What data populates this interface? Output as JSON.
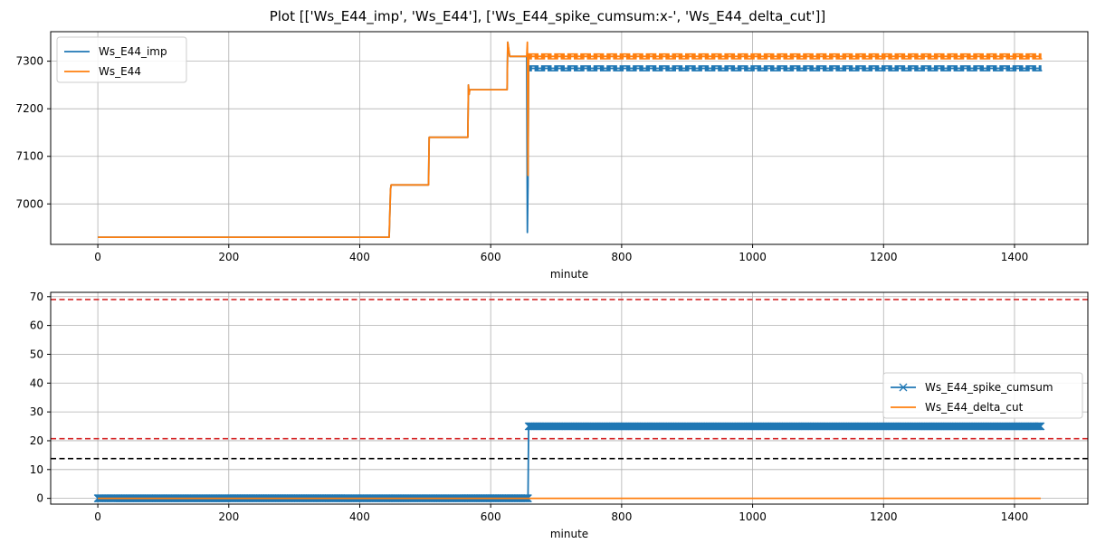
{
  "figure": {
    "suptitle": "Plot [['Ws_E44_imp', 'Ws_E44'], ['Ws_E44_spike_cumsum:x-', 'Ws_E44_delta_cut']]"
  },
  "chart_data": [
    {
      "type": "line",
      "title": "",
      "xlabel": "minute",
      "ylabel": "",
      "xlim": [
        -72,
        1512
      ],
      "ylim": [
        6915,
        7362
      ],
      "xticks": [
        0,
        200,
        400,
        600,
        800,
        1000,
        1200,
        1400
      ],
      "yticks": [
        7000,
        7100,
        7200,
        7300
      ],
      "grid": true,
      "legend_position": "upper left",
      "series": [
        {
          "name": "Ws_E44_imp",
          "color": "#1f77b4",
          "x": [
            0,
            445,
            447,
            448,
            505,
            506,
            565,
            566,
            567,
            568,
            625,
            626,
            628,
            629,
            655,
            656,
            657,
            658,
            660,
            1440
          ],
          "y": [
            6930,
            6930,
            7030,
            7040,
            7040,
            7140,
            7140,
            7250,
            7230,
            7240,
            7240,
            7340,
            7320,
            7310,
            7310,
            6940,
            7040,
            7290,
            7285,
            7285
          ],
          "oscillation": {
            "x_range": [
              658,
              1440
            ],
            "low": 7280,
            "high": 7290
          }
        },
        {
          "name": "Ws_E44",
          "color": "#ff7f0e",
          "x": [
            0,
            445,
            447,
            448,
            505,
            506,
            565,
            566,
            567,
            568,
            625,
            626,
            628,
            629,
            655,
            656,
            657,
            658,
            660,
            1440
          ],
          "y": [
            6930,
            6930,
            7030,
            7040,
            7040,
            7140,
            7140,
            7250,
            7230,
            7240,
            7240,
            7340,
            7320,
            7310,
            7310,
            7340,
            7060,
            7315,
            7310,
            7310
          ],
          "oscillation": {
            "x_range": [
              658,
              1440
            ],
            "low": 7305,
            "high": 7315
          }
        }
      ]
    },
    {
      "type": "line",
      "title": "",
      "xlabel": "minute",
      "ylabel": "",
      "xlim": [
        -72,
        1512
      ],
      "ylim": [
        -2,
        71.5
      ],
      "xticks": [
        0,
        200,
        400,
        600,
        800,
        1000,
        1200,
        1400
      ],
      "yticks": [
        0,
        10,
        20,
        30,
        40,
        50,
        60,
        70
      ],
      "grid": true,
      "legend_position": "center right",
      "series": [
        {
          "name": "Ws_E44_spike_cumsum",
          "color": "#1f77b4",
          "marker": "x",
          "x": [
            0,
            657,
            658,
            1440
          ],
          "y": [
            0,
            0,
            25,
            25
          ],
          "marker_band": {
            "x_range": [
              0,
              657
            ],
            "value": 0
          },
          "marker_band_2": {
            "x_range": [
              658,
              1440
            ],
            "value": 25
          }
        },
        {
          "name": "Ws_E44_delta_cut",
          "color": "#ff7f0e",
          "x": [
            0,
            1440
          ],
          "y": [
            0,
            0
          ]
        }
      ],
      "hlines": [
        {
          "y": 69,
          "color": "#d62728",
          "style": "dashed"
        },
        {
          "y": 20.7,
          "color": "#d62728",
          "style": "dashed"
        },
        {
          "y": 13.8,
          "color": "#000000",
          "style": "dashed"
        }
      ]
    }
  ]
}
